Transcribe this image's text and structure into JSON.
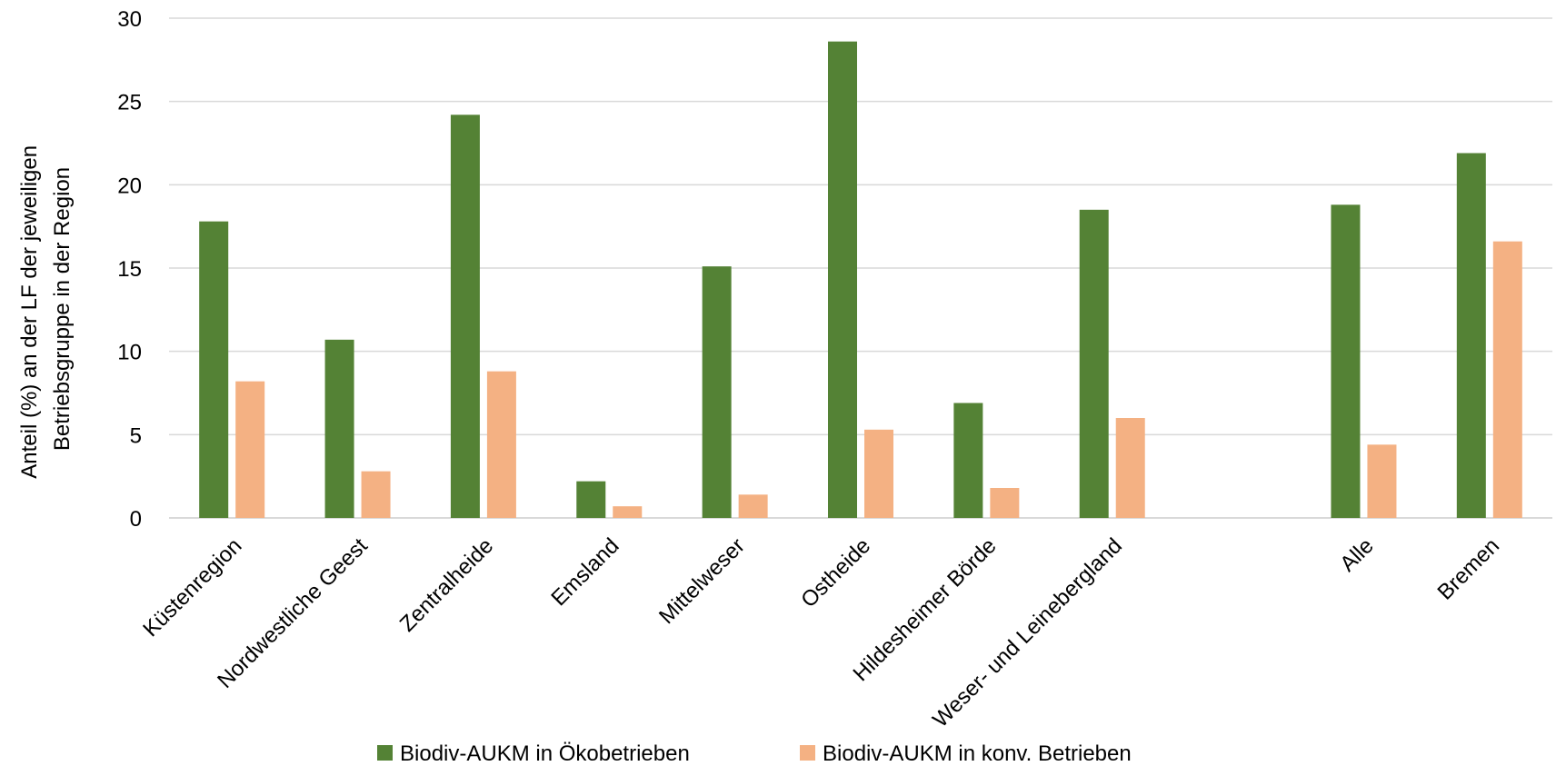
{
  "chart_data": {
    "type": "bar",
    "title": "",
    "xlabel": "",
    "ylabel_lines": [
      "Anteil (%) an der LF der jeweiligen",
      "Betriebsgruppe in der Region"
    ],
    "ylim": [
      0,
      30
    ],
    "yticks": [
      0,
      5,
      10,
      15,
      20,
      25,
      30
    ],
    "grid": true,
    "legend_position": "bottom",
    "categories": [
      "Küstenregion",
      "Nordwestliche Geest",
      "Zentralheide",
      "Emsland",
      "Mittelweser",
      "Ostheide",
      "Hildesheimer Börde",
      "Weser- und Leinebergland",
      "",
      "Alle",
      "Bremen"
    ],
    "series": [
      {
        "name": "Biodiv-AUKM in Ökobetrieben",
        "color": "#548235",
        "values": [
          17.8,
          10.7,
          24.2,
          2.2,
          15.1,
          28.6,
          6.9,
          18.5,
          null,
          18.8,
          21.9
        ]
      },
      {
        "name": "Biodiv-AUKM in konv. Betrieben",
        "color": "#F4B183",
        "values": [
          8.2,
          2.8,
          8.8,
          0.7,
          1.4,
          5.3,
          1.8,
          6.0,
          null,
          4.4,
          16.6
        ]
      }
    ]
  }
}
